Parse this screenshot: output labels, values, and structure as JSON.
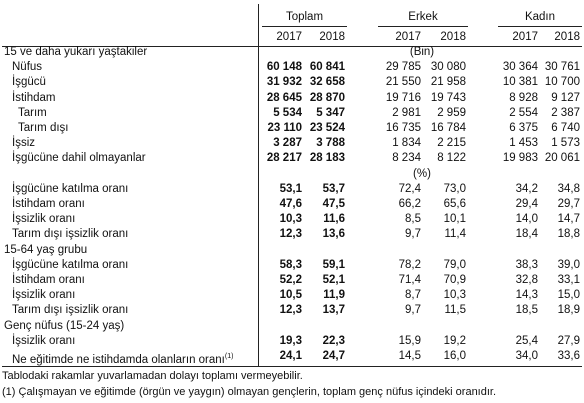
{
  "table": {
    "groups": [
      {
        "name": "Toplam",
        "years": [
          "2017",
          "2018"
        ]
      },
      {
        "name": "Erkek",
        "years": [
          "2017",
          "2018"
        ]
      },
      {
        "name": "Kadın",
        "years": [
          "2017",
          "2018"
        ]
      }
    ],
    "blocks": [
      {
        "title": "15 ve daha yukarı yaştakiler",
        "unit": "(Bin)",
        "rows": [
          {
            "label": "Nüfus",
            "values": [
              "60 148",
              "60 841",
              "29 785",
              "30 080",
              "30 364",
              "30 761"
            ]
          },
          {
            "label": "İşgücü",
            "values": [
              "31 932",
              "32 658",
              "21 550",
              "21 958",
              "10 381",
              "10 700"
            ]
          },
          {
            "label": "İstihdam",
            "values": [
              "28 645",
              "28 870",
              "19 716",
              "19 743",
              "8 928",
              "9 127"
            ]
          },
          {
            "label": "Tarım",
            "indent": true,
            "values": [
              "5 534",
              "5 347",
              "2 981",
              "2 959",
              "2 554",
              "2 387"
            ]
          },
          {
            "label": "Tarım dışı",
            "indent": true,
            "values": [
              "23 110",
              "23 524",
              "16 735",
              "16 784",
              "6 375",
              "6 740"
            ]
          },
          {
            "label": "İşsiz",
            "values": [
              "3 287",
              "3 788",
              "1 834",
              "2 215",
              "1 453",
              "1 573"
            ]
          },
          {
            "label": "İşgücüne dahil olmayanlar",
            "values": [
              "28 217",
              "28 183",
              "8 234",
              "8 122",
              "19 983",
              "20 061"
            ]
          }
        ]
      },
      {
        "unit": "(%)",
        "rows": [
          {
            "label": "İşgücüne katılma oranı",
            "values": [
              "53,1",
              "53,7",
              "72,4",
              "73,0",
              "34,2",
              "34,8"
            ]
          },
          {
            "label": "İstihdam oranı",
            "values": [
              "47,6",
              "47,5",
              "66,2",
              "65,6",
              "29,4",
              "29,7"
            ]
          },
          {
            "label": "İşsizlik oranı",
            "values": [
              "10,3",
              "11,6",
              "8,5",
              "10,1",
              "14,0",
              "14,7"
            ]
          },
          {
            "label": "Tarım dışı işsizlik oranı",
            "values": [
              "12,3",
              "13,6",
              "9,7",
              "11,4",
              "18,4",
              "18,8"
            ]
          }
        ]
      },
      {
        "title": "15-64 yaş grubu",
        "rows": [
          {
            "label": "İşgücüne katılma oranı",
            "values": [
              "58,3",
              "59,1",
              "78,2",
              "79,0",
              "38,3",
              "39,0"
            ]
          },
          {
            "label": "İstihdam oranı",
            "values": [
              "52,2",
              "52,1",
              "71,4",
              "70,9",
              "32,8",
              "33,1"
            ]
          },
          {
            "label": "İşsizlik oranı",
            "values": [
              "10,5",
              "11,9",
              "8,7",
              "10,3",
              "14,3",
              "15,0"
            ]
          },
          {
            "label": "Tarım dışı işsizlik oranı",
            "values": [
              "12,3",
              "13,7",
              "9,7",
              "11,5",
              "18,5",
              "18,9"
            ]
          }
        ]
      },
      {
        "title": "Genç nüfus (15-24 yaş)",
        "rows": [
          {
            "label": "İşsizlik oranı",
            "values": [
              "19,3",
              "22,3",
              "15,9",
              "19,2",
              "25,4",
              "27,9"
            ]
          },
          {
            "label": "Ne eğitimde ne istihdamda olanların oranı",
            "ref": "(1)",
            "values": [
              "24,1",
              "24,7",
              "14,5",
              "16,0",
              "34,0",
              "33,6"
            ]
          }
        ]
      }
    ],
    "footnotes": [
      "Tablodaki rakamlar yuvarlamadan dolayı toplamı vermeyebilir.",
      "(1) Çalışmayan ve eğitimde (örgün ve yaygın) olmayan gençlerin, toplam genç nüfus içindeki oranıdır."
    ]
  }
}
